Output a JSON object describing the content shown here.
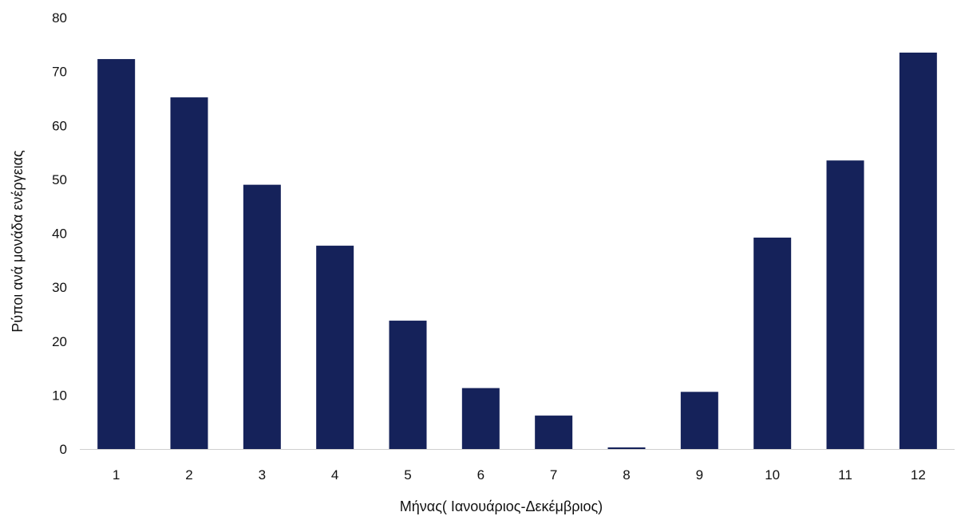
{
  "chart_data": {
    "type": "bar",
    "categories": [
      "1",
      "2",
      "3",
      "4",
      "5",
      "6",
      "7",
      "8",
      "9",
      "10",
      "11",
      "12"
    ],
    "values": [
      72.3,
      65.2,
      49.0,
      37.7,
      23.8,
      11.3,
      6.2,
      0.3,
      10.6,
      39.2,
      53.5,
      73.5
    ],
    "xlabel": "Μήνας( Ιανουάριος-Δεκέμβριος)",
    "ylabel": "Ρύποι ανά μονάδα ενέργειας",
    "ylim": [
      0,
      80
    ],
    "yticks": [
      "0",
      "10",
      "20",
      "30",
      "40",
      "50",
      "60",
      "70",
      "80"
    ],
    "grid": false,
    "legend": "none",
    "bar_color": "#15225a"
  }
}
